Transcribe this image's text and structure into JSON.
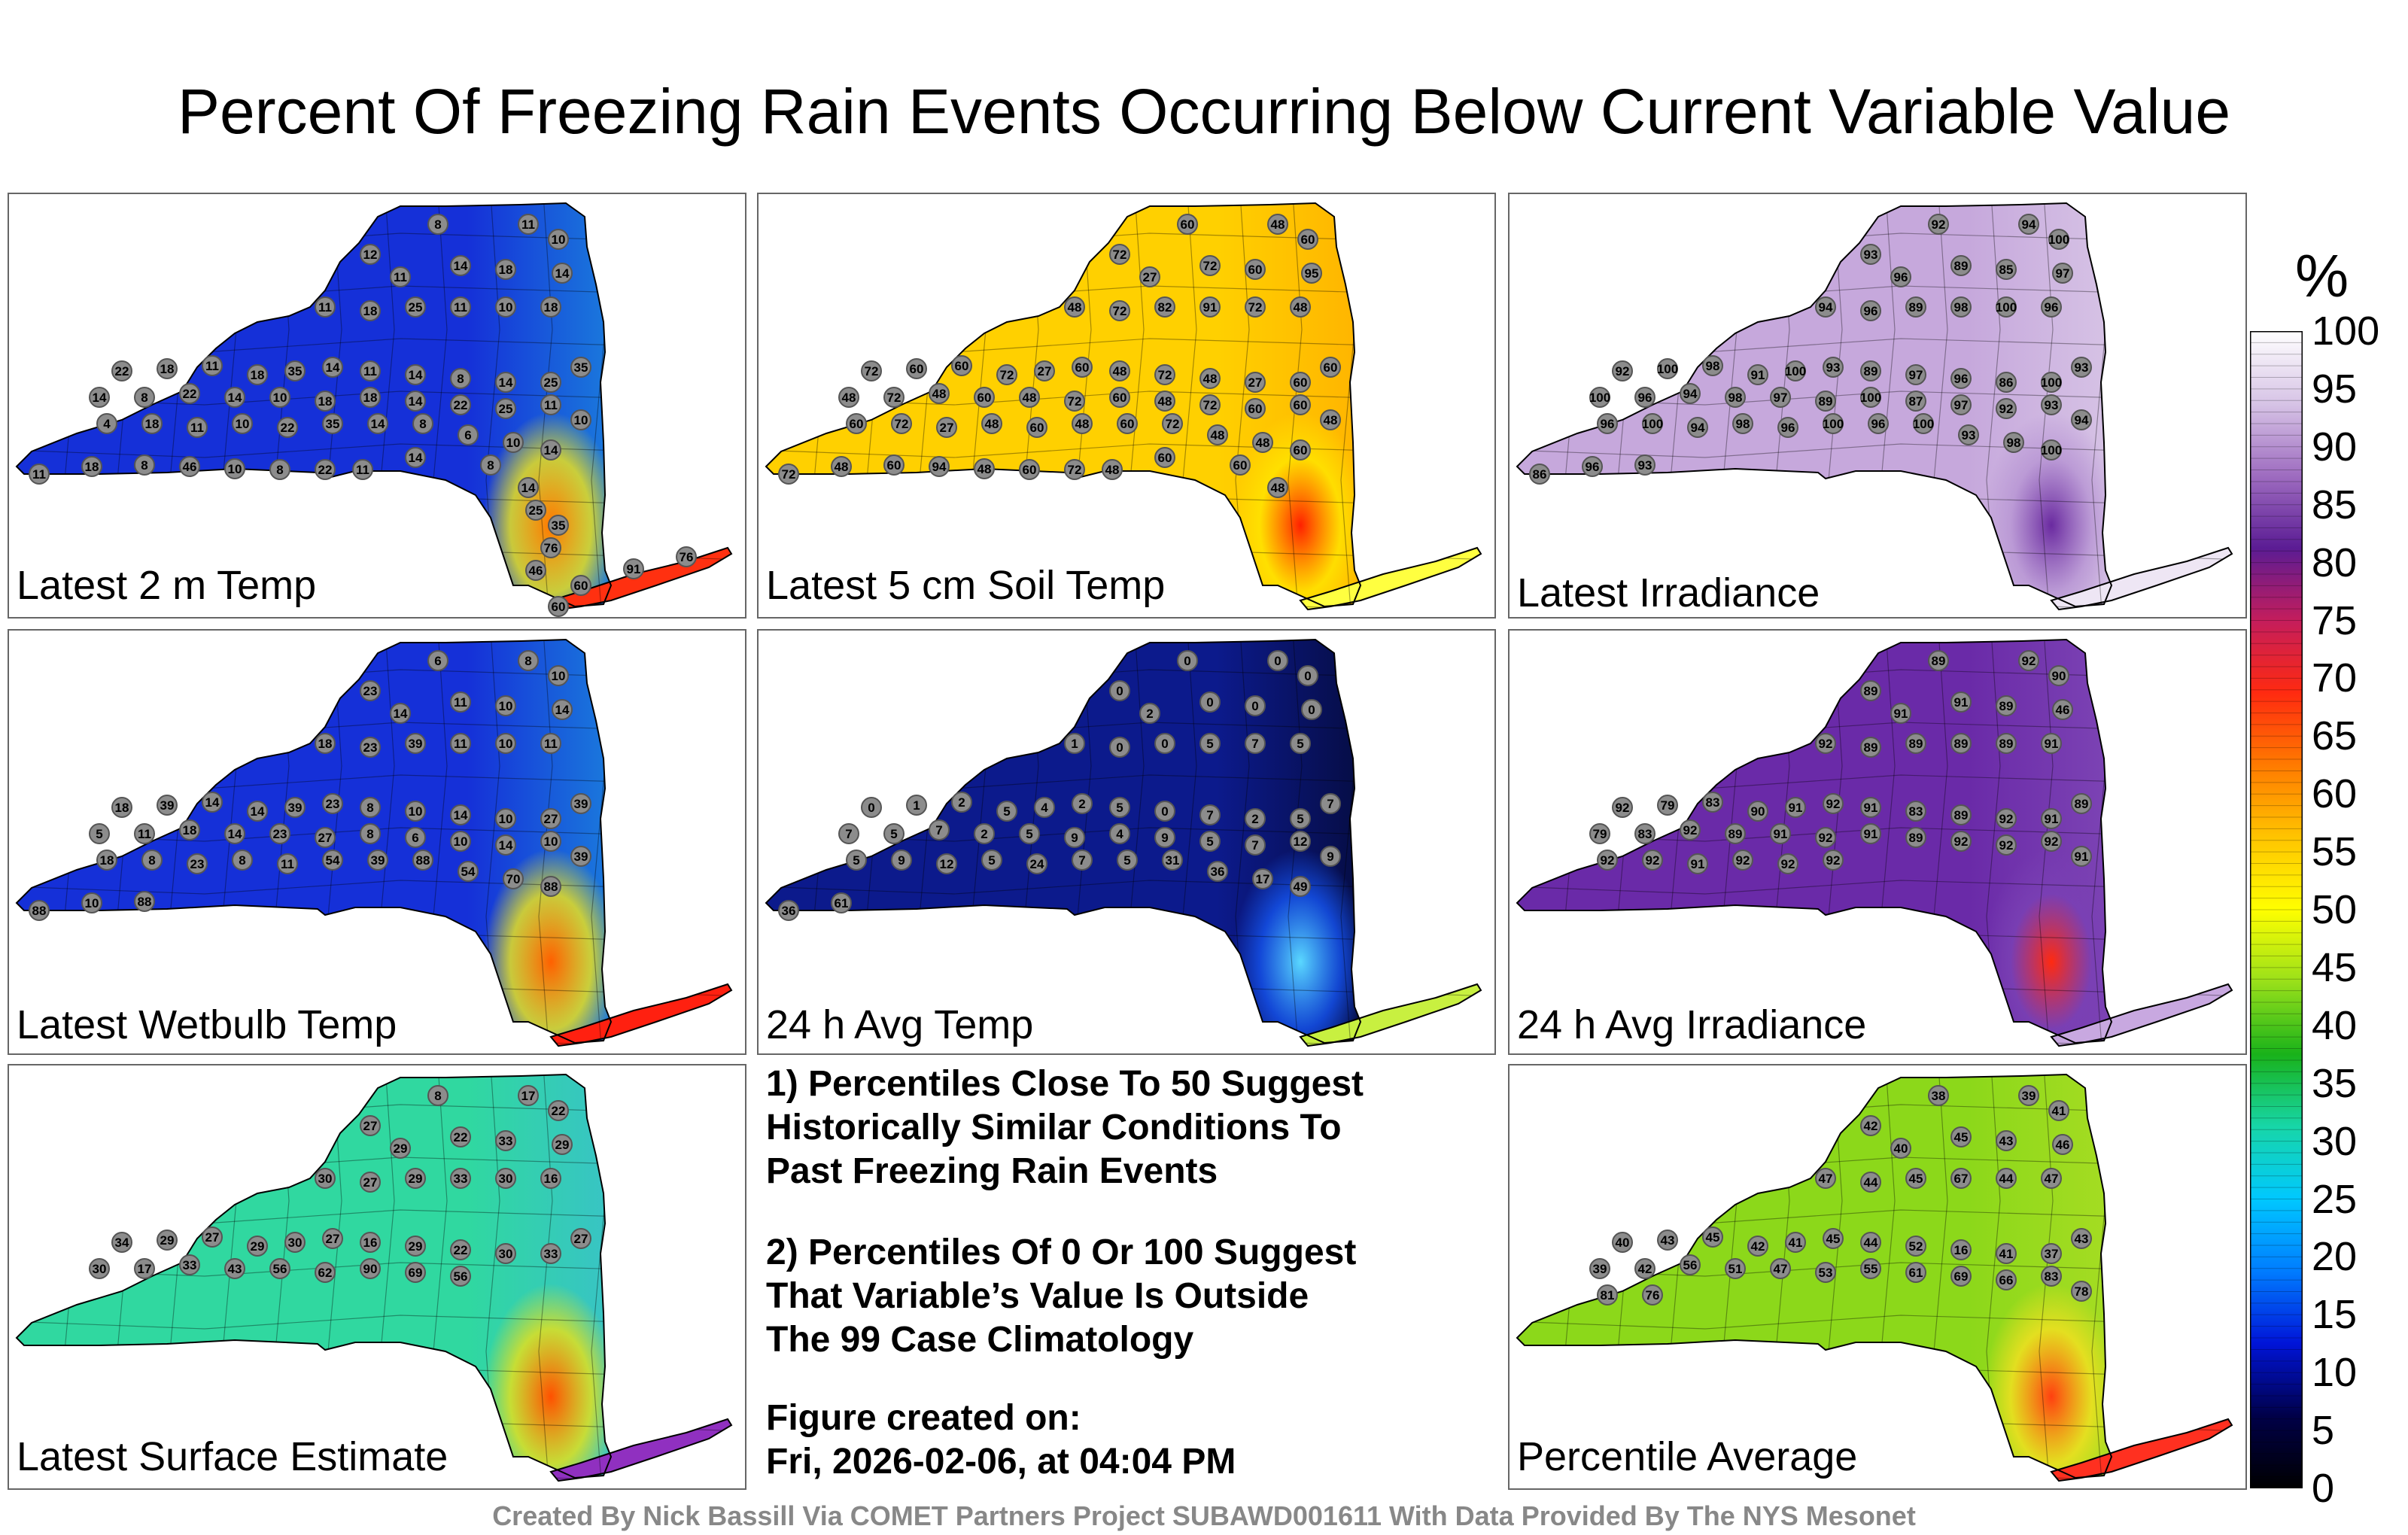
{
  "title": "Percent Of Freezing Rain Events Occurring Below Current Variable Value",
  "colorbar": {
    "unit": "%",
    "ticks": [
      "100",
      "95",
      "90",
      "85",
      "80",
      "75",
      "70",
      "65",
      "60",
      "55",
      "50",
      "45",
      "40",
      "35",
      "30",
      "25",
      "20",
      "15",
      "10",
      "5",
      "0"
    ],
    "gradient_stops": [
      "#ffffff",
      "#d7c4e6",
      "#9e6cc0",
      "#5b1c94",
      "#c41d5c",
      "#ff2a10",
      "#ff7a00",
      "#ffc400",
      "#ffff00",
      "#99e01a",
      "#19b21a",
      "#17d6a8",
      "#00c8ff",
      "#007cff",
      "#0014d8",
      "#000048",
      "#000000"
    ]
  },
  "panels": [
    {
      "label": "Latest 2 m Temp",
      "palette": {
        "base": "#1530d8",
        "east": "#1fc0e0",
        "hud": "#e8e020",
        "hot": "#ff7800",
        "li": "#ff3010"
      },
      "stations": [
        "8",
        "11",
        "10",
        "12",
        "11",
        "14",
        "18",
        "14",
        "11",
        "18",
        "25",
        "11",
        "10",
        "18",
        "22",
        "18",
        "11",
        "18",
        "35",
        "14",
        "11",
        "14",
        "8",
        "14",
        "25",
        "35",
        "14",
        "8",
        "22",
        "14",
        "10",
        "18",
        "18",
        "14",
        "22",
        "25",
        "11",
        "10",
        "4",
        "18",
        "11",
        "10",
        "22",
        "35",
        "14",
        "8",
        "6",
        "10",
        "14",
        "11",
        "18",
        "8",
        "46",
        "10",
        "8",
        "22",
        "11",
        "14",
        "8",
        "14",
        "25",
        "35",
        "76",
        "46",
        "60",
        "91",
        "76",
        "60"
      ]
    },
    {
      "label": "Latest 5 cm Soil Temp",
      "palette": {
        "base": "#ffd000",
        "east": "#ff9a00",
        "hud": "#ffe400",
        "hot": "#ff2000",
        "li": "#ffff40"
      },
      "stations": [
        "60",
        "48",
        "60",
        "72",
        "27",
        "72",
        "60",
        "95",
        "48",
        "72",
        "82",
        "91",
        "72",
        "48",
        "72",
        "60",
        "60",
        "72",
        "27",
        "60",
        "48",
        "72",
        "48",
        "27",
        "60",
        "60",
        "48",
        "72",
        "48",
        "60",
        "48",
        "72",
        "60",
        "48",
        "72",
        "60",
        "60",
        "48",
        "60",
        "72",
        "27",
        "48",
        "60",
        "48",
        "60",
        "72",
        "48",
        "48",
        "60",
        "72",
        "48",
        "60",
        "94",
        "48",
        "60",
        "72",
        "48",
        "60",
        "60",
        "48"
      ]
    },
    {
      "label": "Latest Irradiance",
      "palette": {
        "base": "#c6a8dc",
        "east": "#e6dcee",
        "hud": "#b896d4",
        "hot": "#6a2aa0",
        "li": "#eee6f4"
      },
      "stations": [
        "92",
        "94",
        "100",
        "93",
        "96",
        "89",
        "85",
        "97",
        "94",
        "96",
        "89",
        "98",
        "100",
        "96",
        "92",
        "100",
        "98",
        "91",
        "100",
        "93",
        "89",
        "97",
        "96",
        "86",
        "100",
        "93",
        "100",
        "96",
        "94",
        "98",
        "97",
        "89",
        "100",
        "87",
        "97",
        "92",
        "93",
        "94",
        "96",
        "100",
        "94",
        "98",
        "96",
        "100",
        "96",
        "100",
        "93",
        "98",
        "100",
        "86",
        "96",
        "93"
      ]
    },
    {
      "label": "Latest Wetbulb Temp",
      "palette": {
        "base": "#1530d8",
        "east": "#1fc0e0",
        "hud": "#e8e020",
        "hot": "#ff6000",
        "li": "#ff2010"
      },
      "stations": [
        "6",
        "8",
        "10",
        "23",
        "14",
        "11",
        "10",
        "14",
        "18",
        "23",
        "39",
        "11",
        "10",
        "11",
        "18",
        "39",
        "14",
        "14",
        "39",
        "23",
        "8",
        "10",
        "14",
        "10",
        "27",
        "39",
        "5",
        "11",
        "18",
        "14",
        "23",
        "27",
        "8",
        "6",
        "10",
        "14",
        "10",
        "39",
        "18",
        "8",
        "23",
        "8",
        "11",
        "54",
        "39",
        "88",
        "54",
        "70",
        "88",
        "88",
        "10",
        "88"
      ]
    },
    {
      "label": "24 h Avg Temp",
      "palette": {
        "base": "#0c1a8c",
        "east": "#000000",
        "hud": "#1450e8",
        "hot": "#5ad8ff",
        "li": "#c8f040"
      },
      "stations": [
        "0",
        "0",
        "0",
        "0",
        "2",
        "0",
        "0",
        "0",
        "1",
        "0",
        "0",
        "5",
        "7",
        "5",
        "0",
        "1",
        "2",
        "5",
        "4",
        "2",
        "5",
        "0",
        "7",
        "2",
        "5",
        "7",
        "7",
        "5",
        "7",
        "2",
        "5",
        "9",
        "4",
        "9",
        "5",
        "7",
        "12",
        "9",
        "5",
        "9",
        "12",
        "5",
        "24",
        "7",
        "5",
        "31",
        "36",
        "17",
        "49",
        "36",
        "61"
      ]
    },
    {
      "label": "24 h Avg Irradiance",
      "palette": {
        "base": "#6a2aa8",
        "east": "#8e5cc0",
        "hud": "#7a40b4",
        "hot": "#ff2a10",
        "li": "#c8a8e0"
      },
      "stations": [
        "89",
        "92",
        "90",
        "89",
        "91",
        "91",
        "89",
        "46",
        "92",
        "89",
        "89",
        "89",
        "89",
        "91",
        "92",
        "79",
        "83",
        "90",
        "91",
        "92",
        "91",
        "83",
        "89",
        "92",
        "91",
        "89",
        "79",
        "83",
        "92",
        "89",
        "91",
        "92",
        "91",
        "89",
        "92",
        "92",
        "92",
        "91",
        "92",
        "92",
        "91",
        "92",
        "92",
        "92"
      ]
    },
    {
      "label": "Latest Surface Estimate",
      "palette": {
        "base": "#30d8a0",
        "east": "#40b0e8",
        "hud": "#e0e020",
        "hot": "#ff5000",
        "li": "#9030c0"
      },
      "stations": [
        "8",
        "17",
        "22",
        "27",
        "29",
        "22",
        "33",
        "29",
        "30",
        "27",
        "29",
        "33",
        "30",
        "16",
        "34",
        "29",
        "27",
        "29",
        "30",
        "27",
        "16",
        "29",
        "22",
        "30",
        "33",
        "27",
        "30",
        "17",
        "33",
        "43",
        "56",
        "62",
        "90",
        "69",
        "56"
      ]
    },
    {
      "label": "Percentile Average",
      "palette": {
        "base": "#8cd81a",
        "east": "#bde02a",
        "hud": "#f0e020",
        "hot": "#ff4010",
        "li": "#ff3020"
      },
      "stations": [
        "38",
        "39",
        "41",
        "42",
        "40",
        "45",
        "43",
        "46",
        "47",
        "44",
        "45",
        "67",
        "44",
        "47",
        "40",
        "43",
        "45",
        "42",
        "41",
        "45",
        "44",
        "52",
        "16",
        "41",
        "37",
        "43",
        "39",
        "42",
        "56",
        "51",
        "47",
        "53",
        "55",
        "61",
        "69",
        "66",
        "83",
        "78",
        "81",
        "76"
      ]
    }
  ],
  "notes": [
    "1) Percentiles Close To 50 Suggest",
    "Historically Similar Conditions To",
    "Past Freezing Rain Events",
    "2) Percentiles Of 0 Or 100 Suggest",
    "That Variable’s Value Is Outside",
    "The 99 Case Climatology",
    "Figure created on:",
    "Fri, 2026-02-06, at 04:04 PM"
  ],
  "footer": "Created By Nick Bassill Via COMET Partners Project SUBAWD001611 With Data Provided By The NYS Mesonet"
}
